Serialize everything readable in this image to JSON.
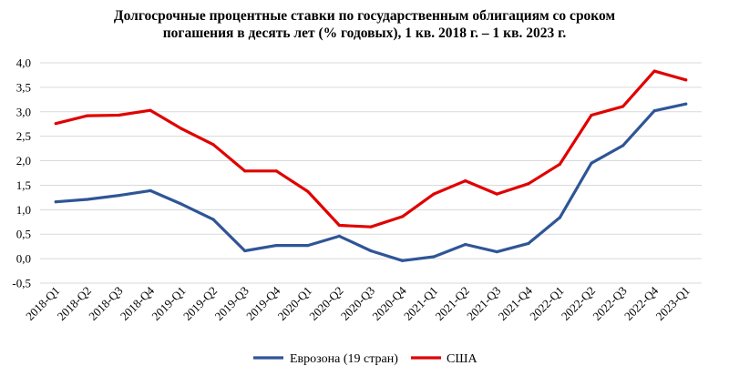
{
  "chart_data": {
    "type": "line",
    "title_line1": "Долгосрочные процентные ставки по государственным облигациям со сроком",
    "title_line2": "погашения в десять лет (% годовых), 1 кв. 2018 г. – 1 кв. 2023 г.",
    "xlabel": "",
    "ylabel": "",
    "ylim": [
      -0.5,
      4.0
    ],
    "yticks": [
      "4,0",
      "3,5",
      "3,0",
      "2,5",
      "2,0",
      "1,5",
      "1,0",
      "0,5",
      "0,0",
      "-0,5"
    ],
    "ytick_values": [
      4.0,
      3.5,
      3.0,
      2.5,
      2.0,
      1.5,
      1.0,
      0.5,
      0.0,
      -0.5
    ],
    "grid": true,
    "legend_position": "bottom",
    "categories": [
      "2018-Q1",
      "2018-Q2",
      "2018-Q3",
      "2018-Q4",
      "2019-Q1",
      "2019-Q2",
      "2019-Q3",
      "2019-Q4",
      "2020-Q1",
      "2020-Q2",
      "2020-Q3",
      "2020-Q4",
      "2021-Q1",
      "2021-Q2",
      "2021-Q3",
      "2021-Q4",
      "2022-Q1",
      "2022-Q2",
      "2022-Q3",
      "2022-Q4",
      "2023-Q1"
    ],
    "series": [
      {
        "name": "Еврозона (19 стран)",
        "color": "#2f5597",
        "values": [
          1.16,
          1.21,
          1.29,
          1.39,
          1.11,
          0.8,
          0.16,
          0.27,
          0.27,
          0.46,
          0.16,
          -0.04,
          0.04,
          0.29,
          0.14,
          0.31,
          0.84,
          1.95,
          2.31,
          3.02,
          3.16
        ]
      },
      {
        "name": "США",
        "color": "#e00000",
        "values": [
          2.76,
          2.92,
          2.93,
          3.03,
          2.65,
          2.33,
          1.79,
          1.79,
          1.37,
          0.68,
          0.65,
          0.86,
          1.32,
          1.59,
          1.32,
          1.53,
          1.93,
          2.93,
          3.11,
          3.83,
          3.65
        ]
      }
    ]
  }
}
